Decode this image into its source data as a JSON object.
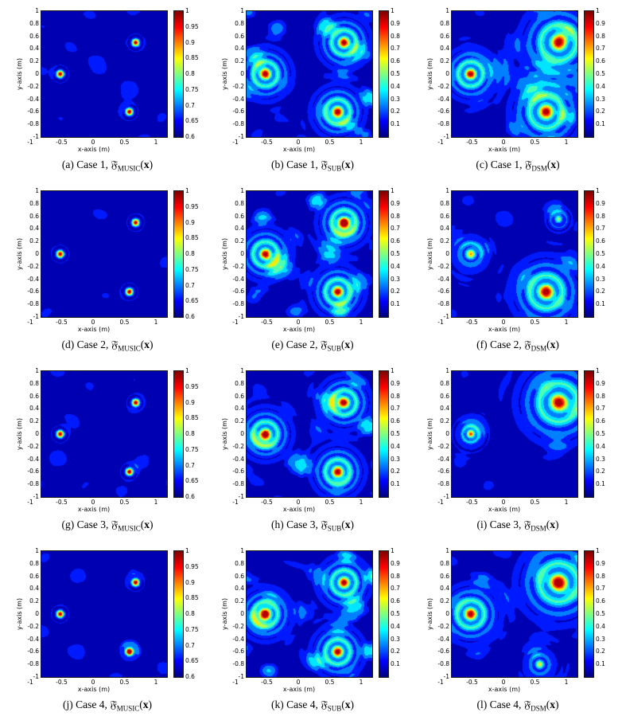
{
  "figure": {
    "description": "4x4 cases by 3 imaging-functional comparison figure, contour heatmaps with jet colormap"
  },
  "axes": {
    "xlabel": "x-axis (m)",
    "ylabel": "y-axis (m)",
    "xlim": [
      -1,
      1
    ],
    "ylim": [
      -1,
      1
    ],
    "x_ticks": [
      "-1",
      "-0.5",
      "0",
      "0.5",
      "1"
    ],
    "y_ticks": [
      "1",
      "0.8",
      "0.6",
      "0.4",
      "0.2",
      "0",
      "-0.2",
      "-0.4",
      "-0.6",
      "-0.8",
      "-1"
    ]
  },
  "colorbars": {
    "music": {
      "min": 0.6,
      "max": 1,
      "ticks": [
        "1",
        "0.95",
        "0.9",
        "0.85",
        "0.8",
        "0.75",
        "0.7",
        "0.65",
        "0.6"
      ]
    },
    "full": {
      "min": 0,
      "max": 1,
      "ticks": [
        "1",
        "0.9",
        "0.8",
        "0.7",
        "0.6",
        "0.5",
        "0.4",
        "0.3",
        "0.2",
        "0.1"
      ]
    }
  },
  "caption_suffix": {
    "open": "(",
    "x": "x",
    "close": ")"
  },
  "chart_data": [
    {
      "type": "heatmap",
      "id": "a",
      "caption_prefix": "(a) Case 1, ",
      "func": "𝔉̃",
      "sub": "MUSIC",
      "cb": "music",
      "style": "music",
      "seed": 1,
      "noise": 0.14,
      "sources": [
        {
          "x": -0.7,
          "y": 0.0,
          "a": 1.0,
          "s": 0.055
        },
        {
          "x": 0.5,
          "y": 0.5,
          "a": 1.0,
          "s": 0.055
        },
        {
          "x": 0.4,
          "y": -0.6,
          "a": 1.0,
          "s": 0.055
        }
      ]
    },
    {
      "type": "heatmap",
      "id": "b",
      "caption_prefix": "(b) Case 1, ",
      "func": "𝔉̃",
      "sub": "SUB",
      "cb": "full",
      "style": "rings",
      "seed": 5,
      "noise": 0.22,
      "sources": [
        {
          "x": -0.7,
          "y": 0.0,
          "a": 1.0,
          "s": 0.09
        },
        {
          "x": 0.55,
          "y": 0.5,
          "a": 1.0,
          "s": 0.09
        },
        {
          "x": 0.45,
          "y": -0.6,
          "a": 1.0,
          "s": 0.09
        }
      ]
    },
    {
      "type": "heatmap",
      "id": "c",
      "caption_prefix": "(c) Case 1, ",
      "func": "𝔉̃",
      "sub": "DSM",
      "cb": "full",
      "style": "rings",
      "seed": 9,
      "noise": 0.12,
      "sources": [
        {
          "x": -0.7,
          "y": 0.0,
          "a": 1.0,
          "s": 0.09
        },
        {
          "x": 0.7,
          "y": 0.5,
          "a": 1.0,
          "s": 0.13
        },
        {
          "x": 0.5,
          "y": -0.6,
          "a": 1.0,
          "s": 0.12
        }
      ]
    },
    {
      "type": "heatmap",
      "id": "d",
      "caption_prefix": "(d) Case 2, ",
      "func": "𝔉̃",
      "sub": "MUSIC",
      "cb": "music",
      "style": "music",
      "seed": 2,
      "noise": 0.14,
      "sources": [
        {
          "x": -0.7,
          "y": 0.0,
          "a": 1.0,
          "s": 0.055
        },
        {
          "x": 0.5,
          "y": 0.5,
          "a": 1.0,
          "s": 0.055
        },
        {
          "x": 0.4,
          "y": -0.6,
          "a": 1.0,
          "s": 0.055
        }
      ]
    },
    {
      "type": "heatmap",
      "id": "e",
      "caption_prefix": "(e) Case 2, ",
      "func": "𝔉̃",
      "sub": "SUB",
      "cb": "full",
      "style": "rings",
      "seed": 6,
      "noise": 0.22,
      "sources": [
        {
          "x": -0.7,
          "y": 0.0,
          "a": 1.0,
          "s": 0.09
        },
        {
          "x": 0.55,
          "y": 0.5,
          "a": 1.0,
          "s": 0.09
        },
        {
          "x": 0.45,
          "y": -0.6,
          "a": 1.0,
          "s": 0.09
        }
      ]
    },
    {
      "type": "heatmap",
      "id": "f",
      "caption_prefix": "(f) Case 2, ",
      "func": "𝔉̃",
      "sub": "DSM",
      "cb": "full",
      "style": "rings",
      "seed": 10,
      "noise": 0.12,
      "sources": [
        {
          "x": -0.7,
          "y": 0.0,
          "a": 0.72,
          "s": 0.08
        },
        {
          "x": 0.7,
          "y": 0.55,
          "a": 0.5,
          "s": 0.06
        },
        {
          "x": 0.5,
          "y": -0.6,
          "a": 1.0,
          "s": 0.12
        }
      ]
    },
    {
      "type": "heatmap",
      "id": "g",
      "caption_prefix": "(g) Case 3, ",
      "func": "𝔉̃",
      "sub": "MUSIC",
      "cb": "music",
      "style": "music",
      "seed": 3,
      "noise": 0.14,
      "sources": [
        {
          "x": -0.7,
          "y": 0.0,
          "a": 1.0,
          "s": 0.055
        },
        {
          "x": 0.5,
          "y": 0.5,
          "a": 1.0,
          "s": 0.055
        },
        {
          "x": 0.4,
          "y": -0.6,
          "a": 1.0,
          "s": 0.055
        }
      ]
    },
    {
      "type": "heatmap",
      "id": "h",
      "caption_prefix": "(h) Case 3, ",
      "func": "𝔉̃",
      "sub": "SUB",
      "cb": "full",
      "style": "rings",
      "seed": 7,
      "noise": 0.22,
      "sources": [
        {
          "x": -0.7,
          "y": 0.0,
          "a": 1.0,
          "s": 0.09
        },
        {
          "x": 0.55,
          "y": 0.5,
          "a": 1.0,
          "s": 0.09
        },
        {
          "x": 0.45,
          "y": -0.6,
          "a": 1.0,
          "s": 0.09
        }
      ]
    },
    {
      "type": "heatmap",
      "id": "i",
      "caption_prefix": "(i) Case 3, ",
      "func": "𝔉̃",
      "sub": "DSM",
      "cb": "full",
      "style": "rings",
      "seed": 11,
      "noise": 0.1,
      "sources": [
        {
          "x": -0.7,
          "y": 0.0,
          "a": 0.78,
          "s": 0.06
        },
        {
          "x": 0.7,
          "y": 0.5,
          "a": 1.0,
          "s": 0.14
        }
      ]
    },
    {
      "type": "heatmap",
      "id": "j",
      "caption_prefix": "(j) Case 4, ",
      "func": "𝔉̃",
      "sub": "MUSIC",
      "cb": "music",
      "style": "music",
      "seed": 4,
      "noise": 0.14,
      "sources": [
        {
          "x": -0.7,
          "y": 0.0,
          "a": 1.0,
          "s": 0.055
        },
        {
          "x": 0.5,
          "y": 0.5,
          "a": 1.0,
          "s": 0.055
        },
        {
          "x": 0.4,
          "y": -0.6,
          "a": 1.0,
          "s": 0.055
        }
      ]
    },
    {
      "type": "heatmap",
      "id": "k",
      "caption_prefix": "(k) Case 4, ",
      "func": "𝔉̃",
      "sub": "SUB",
      "cb": "full",
      "style": "rings",
      "seed": 8,
      "noise": 0.22,
      "sources": [
        {
          "x": -0.7,
          "y": 0.0,
          "a": 1.0,
          "s": 0.09
        },
        {
          "x": 0.55,
          "y": 0.5,
          "a": 1.0,
          "s": 0.09
        },
        {
          "x": 0.45,
          "y": -0.6,
          "a": 1.0,
          "s": 0.09
        }
      ]
    },
    {
      "type": "heatmap",
      "id": "l",
      "caption_prefix": "(l) Case 4, ",
      "func": "𝔉̃",
      "sub": "DSM",
      "cb": "full",
      "style": "rings",
      "seed": 12,
      "noise": 0.12,
      "sources": [
        {
          "x": -0.7,
          "y": 0.0,
          "a": 1.0,
          "s": 0.1
        },
        {
          "x": 0.7,
          "y": 0.5,
          "a": 1.0,
          "s": 0.14
        },
        {
          "x": 0.4,
          "y": -0.8,
          "a": 0.62,
          "s": 0.07
        }
      ]
    }
  ]
}
